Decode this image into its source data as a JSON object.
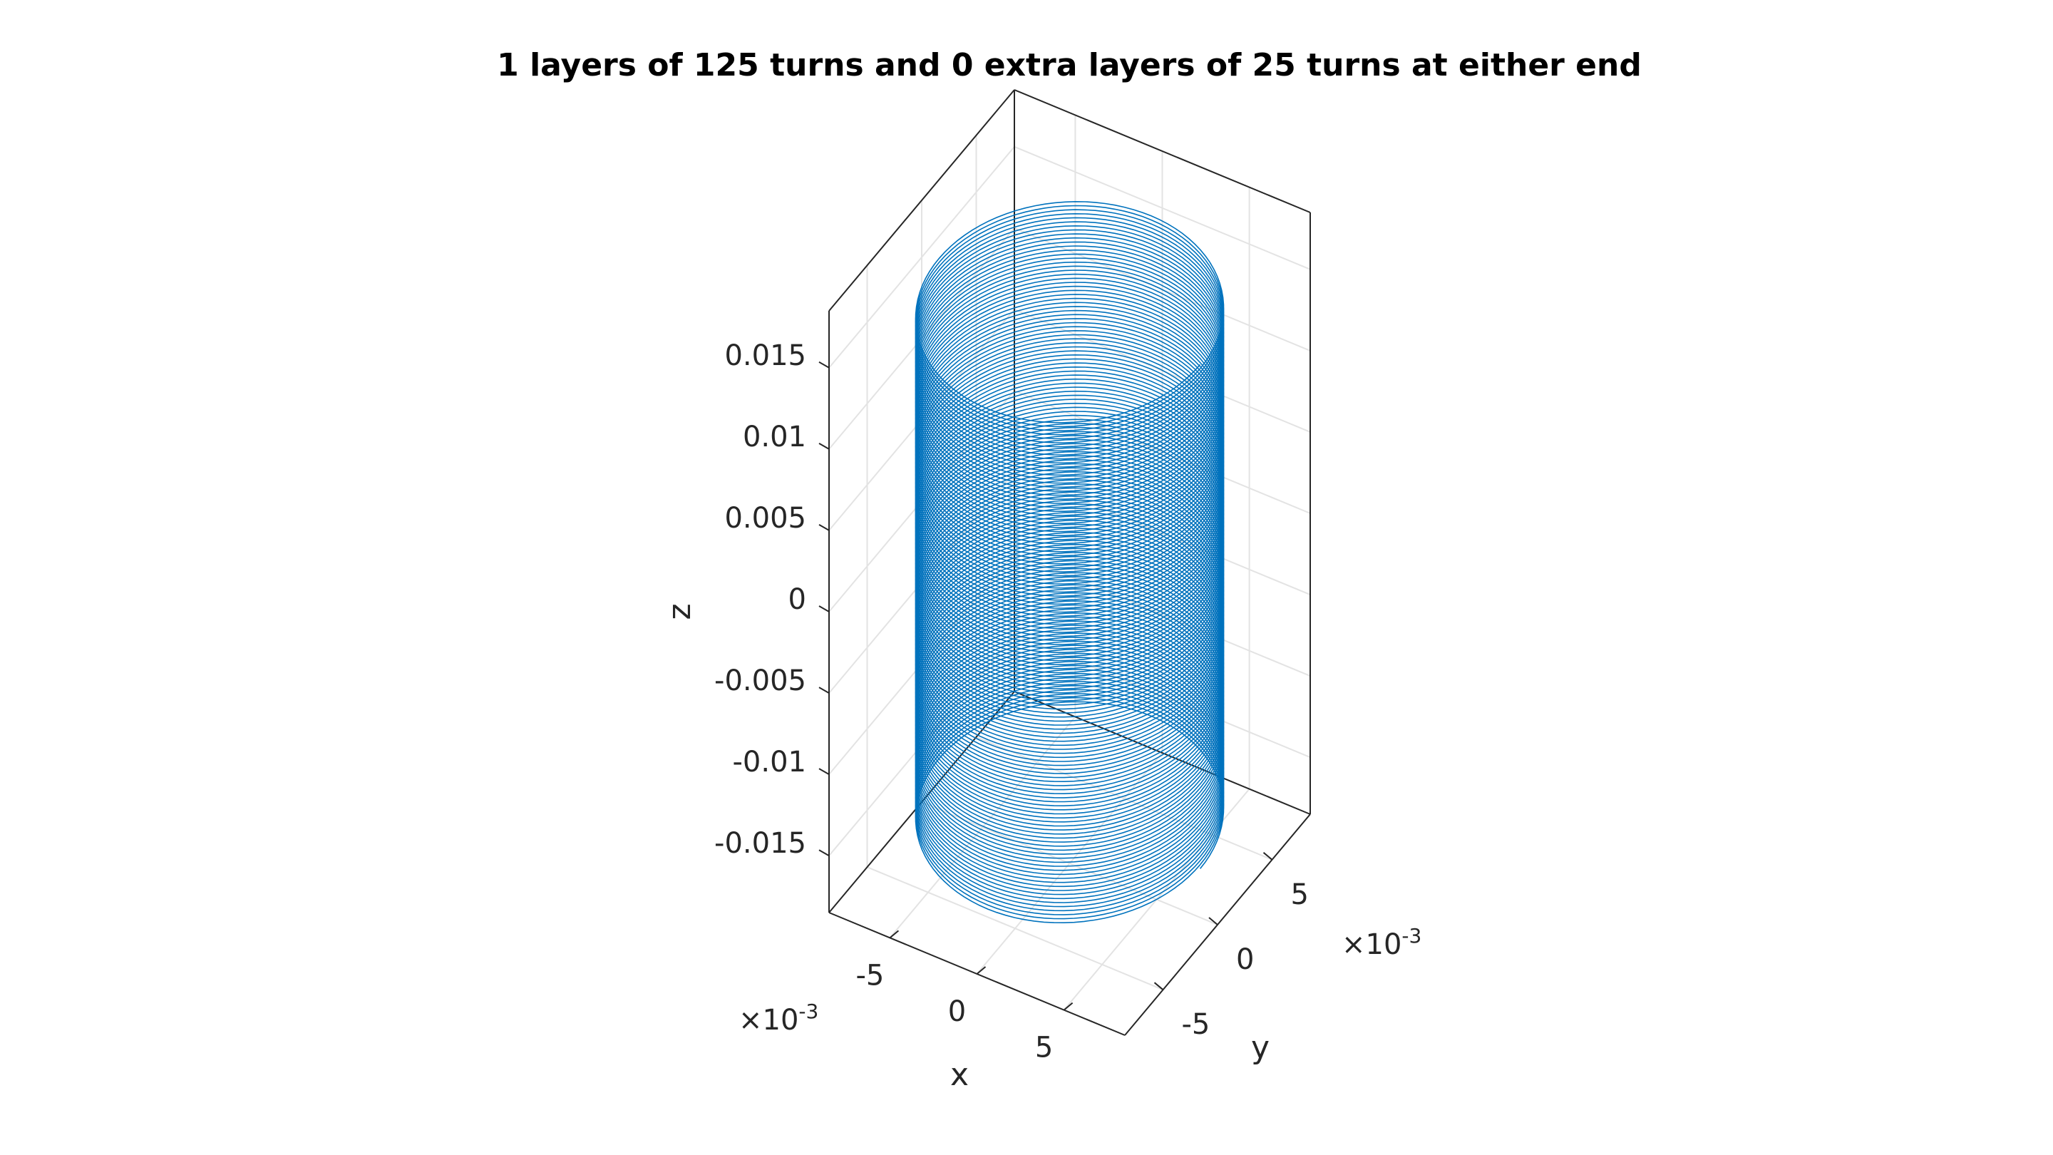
{
  "chart_data": {
    "type": "line",
    "plot_kind": "3d-helix",
    "title": "1 layers of 125 turns and 0 extra layers of 25 turns at either end",
    "xlabel": "x",
    "ylabel": "y",
    "zlabel": "z",
    "x_exponent_label": "×10",
    "x_exponent_power": "-3",
    "y_exponent_label": "×10",
    "y_exponent_power": "-3",
    "xlim": [
      -0.0085,
      0.0085
    ],
    "ylim": [
      -0.0085,
      0.0085
    ],
    "zlim": [
      -0.0185,
      0.0185
    ],
    "x_ticks": [
      {
        "value": -0.005,
        "label": "-5"
      },
      {
        "value": 0,
        "label": "0"
      },
      {
        "value": 0.005,
        "label": "5"
      }
    ],
    "y_ticks": [
      {
        "value": -0.005,
        "label": "-5"
      },
      {
        "value": 0,
        "label": "0"
      },
      {
        "value": 0.005,
        "label": "5"
      }
    ],
    "z_ticks": [
      {
        "value": 0.015,
        "label": "0.015"
      },
      {
        "value": 0.01,
        "label": "0.01"
      },
      {
        "value": 0.005,
        "label": "0.005"
      },
      {
        "value": 0,
        "label": "0"
      },
      {
        "value": -0.005,
        "label": "-0.005"
      },
      {
        "value": -0.01,
        "label": "-0.01"
      },
      {
        "value": -0.015,
        "label": "-0.015"
      }
    ],
    "grid": true,
    "series": [
      {
        "color": "#0072BD",
        "turns": 125,
        "radius": 0.0075,
        "z_start": -0.0155,
        "z_end": 0.0155
      }
    ]
  }
}
